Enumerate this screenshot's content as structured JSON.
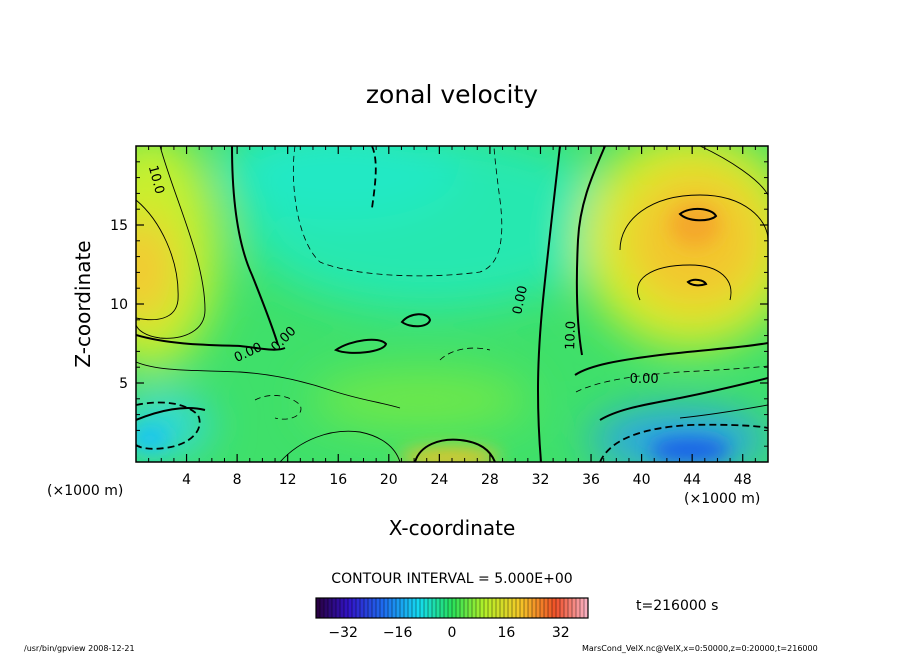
{
  "chart_data": {
    "type": "heatmap",
    "title": "zonal velocity",
    "xlabel": "X-coordinate",
    "ylabel": "Z-coordinate",
    "xlim": [
      0,
      50
    ],
    "ylim": [
      0,
      20
    ],
    "x_ticks": [
      4,
      8,
      12,
      16,
      20,
      24,
      28,
      32,
      36,
      40,
      44,
      48
    ],
    "y_ticks": [
      5,
      10,
      15
    ],
    "x_unit": "(×1000 m)",
    "y_unit": "(×1000 m)",
    "contour_interval_text": "CONTOUR INTERVAL = 5.000E+00",
    "time_text": "t=216000 s",
    "colorbar": {
      "range": [
        -40,
        40
      ],
      "ticks": [
        -32,
        -16,
        0,
        16,
        32
      ]
    },
    "contour_labels": [
      {
        "text": "10.0",
        "x": 1.3,
        "z": 17.8,
        "rotation": 75
      },
      {
        "text": "0.00",
        "x": 11.9,
        "z": 7.6,
        "rotation": -45
      },
      {
        "text": "0.00",
        "x": 9.0,
        "z": 6.7,
        "rotation": -25
      },
      {
        "text": "0.00",
        "x": 30.7,
        "z": 10.2,
        "rotation": -78
      },
      {
        "text": "10.0",
        "x": 34.7,
        "z": 8.0,
        "rotation": -88
      },
      {
        "text": "0.00",
        "x": 40.2,
        "z": 5.0,
        "rotation": 0
      }
    ],
    "features": [
      {
        "type": "max",
        "x": 0.8,
        "z": 12.5,
        "value": 18
      },
      {
        "type": "max",
        "x": 44,
        "z": 14,
        "value": 22
      },
      {
        "type": "max",
        "x": 44.5,
        "z": 11,
        "value": 20
      },
      {
        "type": "max",
        "x": 24.5,
        "z": 0.4,
        "value": 14
      },
      {
        "type": "min",
        "x": 43.5,
        "z": 1.0,
        "value": -30
      },
      {
        "type": "min",
        "x": 1.5,
        "z": 2.0,
        "value": -16
      },
      {
        "type": "min",
        "x": 26,
        "z": 15,
        "value": -8
      }
    ]
  },
  "footer": {
    "left": "/usr/bin/gpview   2008-12-21",
    "right": "MarsCond_VelX.nc@VelX,x=0:50000,z=0:20000,t=216000"
  }
}
